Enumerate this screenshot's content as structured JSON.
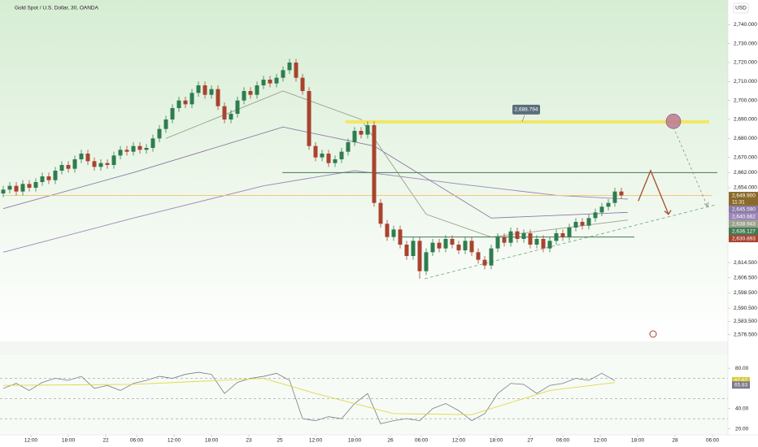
{
  "chart_data": {
    "type": "candlestick",
    "title": "Gold Spot / U.S. Dollar, 30, OANDA",
    "currency_label": "USD",
    "up_color": "#2e7d4f",
    "down_color": "#a8432f",
    "open": [
      2651,
      2653,
      2655,
      2652,
      2656,
      2654,
      2657,
      2660,
      2658,
      2663,
      2666,
      2664,
      2669,
      2672,
      2668,
      2665,
      2667,
      2666,
      2671,
      2674,
      2673,
      2676,
      2674,
      2675,
      2680,
      2685,
      2690,
      2696,
      2700,
      2698,
      2704,
      2708,
      2703,
      2706,
      2697,
      2690,
      2693,
      2700,
      2705,
      2703,
      2708,
      2711,
      2709,
      2712,
      2716,
      2720,
      2712,
      2705,
      2676,
      2670,
      2672,
      2667,
      2669,
      2673,
      2678,
      2684,
      2682,
      2687,
      2646,
      2635,
      2628,
      2632,
      2624,
      2618,
      2626,
      2610,
      2620,
      2625,
      2622,
      2627,
      2624,
      2621,
      2626,
      2620,
      2616,
      2613,
      2622,
      2628,
      2625,
      2631,
      2627,
      2630,
      2624,
      2627,
      2622,
      2626,
      2630,
      2628,
      2633,
      2636,
      2634,
      2638,
      2641,
      2644,
      2646,
      2652
    ],
    "high": [
      2655,
      2657,
      2657,
      2658,
      2658,
      2659,
      2662,
      2662,
      2665,
      2668,
      2668,
      2671,
      2674,
      2674,
      2670,
      2669,
      2669,
      2673,
      2676,
      2676,
      2678,
      2678,
      2677,
      2682,
      2687,
      2692,
      2698,
      2702,
      2702,
      2706,
      2710,
      2710,
      2708,
      2708,
      2699,
      2695,
      2702,
      2707,
      2707,
      2710,
      2713,
      2713,
      2714,
      2718,
      2722,
      2722,
      2714,
      2707,
      2678,
      2674,
      2674,
      2671,
      2675,
      2680,
      2686,
      2686,
      2689,
      2689,
      2648,
      2637,
      2634,
      2634,
      2626,
      2628,
      2628,
      2622,
      2627,
      2627,
      2629,
      2629,
      2626,
      2628,
      2628,
      2622,
      2618,
      2624,
      2630,
      2630,
      2633,
      2633,
      2632,
      2632,
      2629,
      2629,
      2628,
      2632,
      2632,
      2635,
      2638,
      2638,
      2640,
      2643,
      2646,
      2648,
      2654,
      2654
    ],
    "low": [
      2649,
      2651,
      2650,
      2650,
      2652,
      2652,
      2655,
      2656,
      2656,
      2661,
      2662,
      2662,
      2667,
      2666,
      2663,
      2663,
      2664,
      2664,
      2669,
      2671,
      2671,
      2672,
      2672,
      2673,
      2678,
      2683,
      2688,
      2694,
      2696,
      2696,
      2702,
      2701,
      2701,
      2695,
      2688,
      2688,
      2691,
      2698,
      2701,
      2701,
      2706,
      2707,
      2707,
      2710,
      2714,
      2710,
      2703,
      2674,
      2668,
      2668,
      2665,
      2665,
      2667,
      2671,
      2676,
      2680,
      2680,
      2644,
      2633,
      2626,
      2626,
      2622,
      2616,
      2616,
      2606,
      2608,
      2618,
      2620,
      2620,
      2622,
      2619,
      2619,
      2618,
      2614,
      2611,
      2611,
      2620,
      2623,
      2623,
      2625,
      2625,
      2622,
      2622,
      2620,
      2620,
      2624,
      2626,
      2626,
      2631,
      2632,
      2632,
      2636,
      2639,
      2642,
      2644,
      2648
    ],
    "close": [
      2653,
      2655,
      2652,
      2656,
      2654,
      2657,
      2660,
      2658,
      2663,
      2666,
      2664,
      2669,
      2672,
      2668,
      2665,
      2667,
      2666,
      2671,
      2674,
      2673,
      2676,
      2674,
      2675,
      2680,
      2685,
      2690,
      2696,
      2700,
      2698,
      2704,
      2708,
      2703,
      2706,
      2697,
      2690,
      2693,
      2700,
      2705,
      2703,
      2708,
      2711,
      2709,
      2712,
      2716,
      2720,
      2712,
      2705,
      2676,
      2670,
      2672,
      2667,
      2669,
      2673,
      2678,
      2684,
      2682,
      2687,
      2646,
      2635,
      2628,
      2632,
      2624,
      2618,
      2626,
      2610,
      2620,
      2625,
      2622,
      2627,
      2624,
      2621,
      2626,
      2620,
      2616,
      2613,
      2622,
      2628,
      2625,
      2631,
      2627,
      2630,
      2624,
      2627,
      2622,
      2626,
      2630,
      2628,
      2633,
      2636,
      2634,
      2638,
      2641,
      2644,
      2646,
      2652,
      2650
    ],
    "xlim": [
      0,
      109
    ],
    "xticks": [
      {
        "value": 4.25,
        "label": "12:00"
      },
      {
        "value": 10,
        "label": "18:00"
      },
      {
        "value": 15.75,
        "label": "22"
      },
      {
        "value": 20.5,
        "label": "06:00"
      },
      {
        "value": 26.25,
        "label": "12:00"
      },
      {
        "value": 32,
        "label": "18:00"
      },
      {
        "value": 37.75,
        "label": "23"
      },
      {
        "value": 42.5,
        "label": "25"
      },
      {
        "value": 48,
        "label": "12:00"
      },
      {
        "value": 54,
        "label": "18:00"
      },
      {
        "value": 59.5,
        "label": "26"
      },
      {
        "value": 64.25,
        "label": "06:00"
      },
      {
        "value": 70,
        "label": "12:00"
      },
      {
        "value": 75.75,
        "label": "18:00"
      },
      {
        "value": 81,
        "label": "27"
      },
      {
        "value": 86,
        "label": "06:00"
      },
      {
        "value": 91.75,
        "label": "12:00"
      },
      {
        "value": 97.5,
        "label": "18:00"
      },
      {
        "value": 103.25,
        "label": "28"
      },
      {
        "value": 109,
        "label": "06:00"
      }
    ],
    "ylim": [
      2573,
      2753
    ],
    "yticks": [
      {
        "value": 2740,
        "label": "2,740.000"
      },
      {
        "value": 2730,
        "label": "2,730.000"
      },
      {
        "value": 2720,
        "label": "2,720.000"
      },
      {
        "value": 2710,
        "label": "2,710.000"
      },
      {
        "value": 2700,
        "label": "2,700.000"
      },
      {
        "value": 2690,
        "label": "2,690.000"
      },
      {
        "value": 2680,
        "label": "2,680.000"
      },
      {
        "value": 2670,
        "label": "2,670.000"
      },
      {
        "value": 2662,
        "label": "2,662.000"
      },
      {
        "value": 2654,
        "label": "2,654.000"
      },
      {
        "value": 2614.5,
        "label": "2,614.500"
      },
      {
        "value": 2606.5,
        "label": "2,606.500"
      },
      {
        "value": 2598.5,
        "label": "2,598.500"
      },
      {
        "value": 2590.5,
        "label": "2,590.500"
      },
      {
        "value": 2583.5,
        "label": "2,583.500"
      },
      {
        "value": 2576.5,
        "label": "2,576.500"
      }
    ],
    "moving_averages": [
      {
        "color": "#9a86b8",
        "x": [
          0,
          20,
          40,
          54,
          70,
          85,
          96
        ],
        "values": [
          2620,
          2638,
          2655,
          2663,
          2656,
          2650,
          2648
        ]
      },
      {
        "color": "#8a7aa6",
        "x": [
          0,
          20,
          43,
          57,
          75,
          96
        ],
        "values": [
          2643,
          2662,
          2686,
          2676,
          2638,
          2641
        ]
      },
      {
        "color": "#9aa08a",
        "x": [
          25,
          43,
          55,
          65,
          75,
          96
        ],
        "values": [
          2680,
          2705,
          2690,
          2640,
          2628,
          2637
        ]
      }
    ],
    "levels": [
      {
        "value": 2688.794,
        "color": "#f2e766",
        "width": 4,
        "from": 52.6,
        "to": 108.5
      },
      {
        "value": 2662,
        "color": "#3f7a52",
        "width": 1,
        "from": 42.9,
        "to": 109.75
      },
      {
        "value": 2628,
        "color": "#3f7a52",
        "width": 1,
        "from": 60.75,
        "to": 97
      },
      {
        "value": 2649.9,
        "color": "#f0c26a",
        "width": 0.8,
        "from": 0,
        "to": 109
      }
    ],
    "annotation": {
      "label": "2,688.794",
      "value": 2688.794,
      "x": 80.5
    },
    "trendline": {
      "x": [
        64.75,
        109.5
      ],
      "values": [
        2606,
        2645
      ]
    },
    "projection": {
      "x": [
        97.6,
        99.5,
        102.25
      ],
      "values": [
        2647,
        2663,
        2640
      ]
    },
    "dashed_arrow": {
      "x": [
        103,
        108.25
      ],
      "values": [
        2686,
        2644
      ]
    },
    "marker": {
      "x": 103,
      "value": 2689
    },
    "price_labels": [
      {
        "value": 2649.9,
        "label": "2,649.900",
        "color": "#8a6a2a"
      },
      {
        "value": 2645.59,
        "label": "2,645.590",
        "color": "#8a7aa6"
      },
      {
        "value": 2640.662,
        "label": "2,640.662",
        "color": "#9a86b8"
      },
      {
        "value": 2638.943,
        "label": "2,638.943",
        "color": "#9aa08a"
      },
      {
        "value": 2636.127,
        "label": "2,636.127",
        "color": "#3f7a52"
      },
      {
        "value": 2630.893,
        "label": "2,630.893",
        "color": "#a8432f"
      }
    ],
    "countdown": "11:31",
    "indicator": {
      "ylim": [
        14,
        93
      ],
      "yticks": [
        {
          "value": 80,
          "label": "80.00"
        },
        {
          "value": 40,
          "label": "40.00"
        },
        {
          "value": 20,
          "label": "20.00"
        }
      ],
      "levels": [
        70,
        50,
        30
      ],
      "x": [
        0,
        2,
        4,
        6,
        8,
        10,
        12,
        14,
        16,
        18,
        20,
        22,
        24,
        26,
        28,
        30,
        32,
        34,
        36,
        38,
        40,
        42,
        44,
        46,
        48,
        50,
        52,
        54,
        56,
        58,
        60,
        62,
        64,
        66,
        68,
        70,
        72,
        74,
        76,
        78,
        80,
        82,
        84,
        86,
        88,
        90,
        92,
        94
      ],
      "values": [
        60,
        65,
        58,
        66,
        70,
        68,
        72,
        60,
        63,
        58,
        65,
        68,
        72,
        70,
        74,
        76,
        74,
        55,
        66,
        70,
        72,
        75,
        68,
        30,
        28,
        32,
        30,
        45,
        55,
        25,
        28,
        30,
        28,
        40,
        45,
        38,
        28,
        35,
        55,
        65,
        64,
        55,
        63,
        65,
        70,
        68,
        75,
        67.67
      ],
      "color": "#7a7a8a",
      "signal": {
        "color": "#e2d84a",
        "x": [
          0,
          20,
          40,
          48,
          60,
          72,
          84,
          94
        ],
        "values": [
          63,
          64,
          70,
          55,
          35,
          34,
          58,
          65.83
        ]
      },
      "badges": [
        67.67,
        65.83
      ]
    }
  }
}
